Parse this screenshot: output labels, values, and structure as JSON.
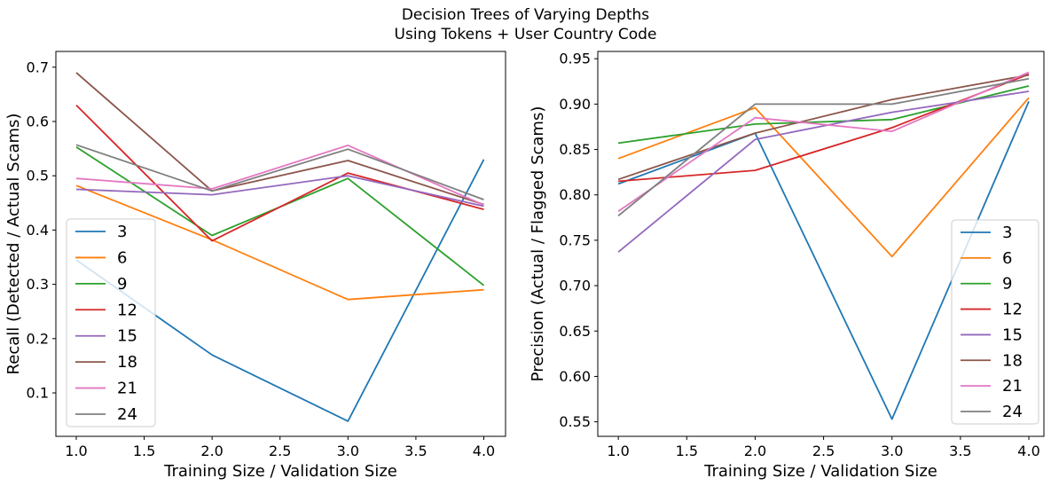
{
  "title": {
    "line1": "Decision Trees of Varying Depths",
    "line2": "Using Tokens + User Country Code"
  },
  "chart_data": [
    {
      "type": "line",
      "panel": "left",
      "xlabel": "Training Size / Validation Size",
      "ylabel": "Recall (Detected / Actual Scams)",
      "x": [
        1.0,
        2.0,
        3.0,
        4.0
      ],
      "xlim": [
        0.85,
        4.16
      ],
      "ylim": [
        0.02,
        0.729
      ],
      "grid": false,
      "legend_position": "lower left",
      "xticks": {
        "values": [
          1.0,
          1.5,
          2.0,
          2.5,
          3.0,
          3.5,
          4.0
        ],
        "labels": [
          "1.0",
          "1.5",
          "2.0",
          "2.5",
          "3.0",
          "3.5",
          "4.0"
        ]
      },
      "yticks": {
        "values": [
          0.1,
          0.2,
          0.3,
          0.4,
          0.5,
          0.6,
          0.7
        ],
        "labels": [
          "0.1",
          "0.2",
          "0.3",
          "0.4",
          "0.5",
          "0.6",
          "0.7"
        ]
      },
      "series": [
        {
          "name": "3",
          "color": "#1f77b4",
          "values": [
            0.345,
            0.17,
            0.048,
            0.53
          ]
        },
        {
          "name": "6",
          "color": "#ff7f0e",
          "values": [
            0.482,
            0.382,
            0.272,
            0.29
          ]
        },
        {
          "name": "9",
          "color": "#2ca02c",
          "values": [
            0.553,
            0.39,
            0.495,
            0.298
          ]
        },
        {
          "name": "12",
          "color": "#d62728",
          "values": [
            0.63,
            0.38,
            0.505,
            0.438
          ]
        },
        {
          "name": "15",
          "color": "#9467bd",
          "values": [
            0.475,
            0.465,
            0.5,
            0.444
          ]
        },
        {
          "name": "18",
          "color": "#8c564b",
          "values": [
            0.69,
            0.472,
            0.528,
            0.447
          ]
        },
        {
          "name": "21",
          "color": "#e377c2",
          "values": [
            0.495,
            0.476,
            0.556,
            0.446
          ]
        },
        {
          "name": "24",
          "color": "#7f7f7f",
          "values": [
            0.557,
            0.472,
            0.549,
            0.456
          ]
        }
      ]
    },
    {
      "type": "line",
      "panel": "right",
      "xlabel": "Training Size / Validation Size",
      "ylabel": "Precision (Actual / Flagged Scams)",
      "x": [
        1.0,
        2.0,
        3.0,
        4.0
      ],
      "xlim": [
        0.85,
        4.11
      ],
      "ylim": [
        0.534,
        0.958
      ],
      "grid": false,
      "legend_position": "lower right",
      "xticks": {
        "values": [
          1.0,
          1.5,
          2.0,
          2.5,
          3.0,
          3.5,
          4.0
        ],
        "labels": [
          "1.0",
          "1.5",
          "2.0",
          "2.5",
          "3.0",
          "3.5",
          "4.0"
        ]
      },
      "yticks": {
        "values": [
          0.55,
          0.6,
          0.65,
          0.7,
          0.75,
          0.8,
          0.85,
          0.9,
          0.95
        ],
        "labels": [
          "0.55",
          "0.60",
          "0.65",
          "0.70",
          "0.75",
          "0.80",
          "0.85",
          "0.90",
          "0.95"
        ]
      },
      "series": [
        {
          "name": "3",
          "color": "#1f77b4",
          "values": [
            0.812,
            0.868,
            0.553,
            0.903
          ]
        },
        {
          "name": "6",
          "color": "#ff7f0e",
          "values": [
            0.84,
            0.896,
            0.732,
            0.907
          ]
        },
        {
          "name": "9",
          "color": "#2ca02c",
          "values": [
            0.857,
            0.878,
            0.883,
            0.92
          ]
        },
        {
          "name": "12",
          "color": "#d62728",
          "values": [
            0.815,
            0.827,
            0.874,
            0.933
          ]
        },
        {
          "name": "15",
          "color": "#9467bd",
          "values": [
            0.737,
            0.861,
            0.891,
            0.914
          ]
        },
        {
          "name": "18",
          "color": "#8c564b",
          "values": [
            0.817,
            0.868,
            0.905,
            0.932
          ]
        },
        {
          "name": "21",
          "color": "#e377c2",
          "values": [
            0.782,
            0.885,
            0.87,
            0.935
          ]
        },
        {
          "name": "24",
          "color": "#7f7f7f",
          "values": [
            0.777,
            0.9,
            0.9,
            0.928
          ]
        }
      ]
    }
  ]
}
